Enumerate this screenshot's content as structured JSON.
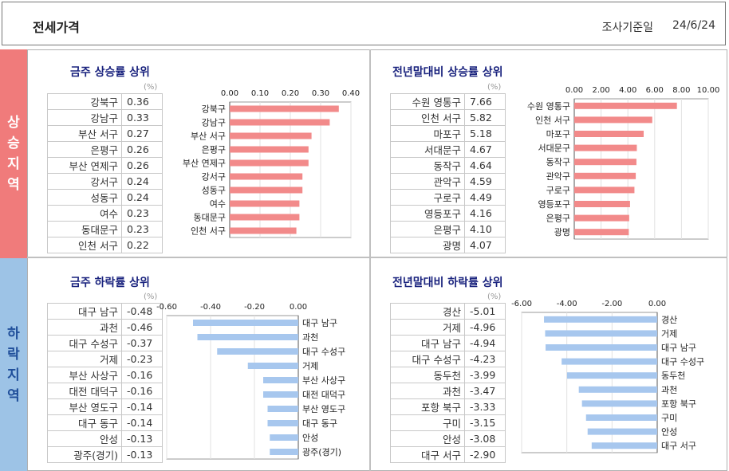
{
  "header": {
    "title": "전세가격",
    "date_label": "조사기준일",
    "date_value": "24/6/24"
  },
  "side": {
    "up": "상승지역",
    "down": "하락지역"
  },
  "unit": "(%)",
  "chart_data": [
    {
      "type": "bar",
      "title": "금주 상승률 상위",
      "categories": [
        "강북구",
        "강남구",
        "부산 서구",
        "은평구",
        "부산 연제구",
        "강서구",
        "성동구",
        "여수",
        "동대문구",
        "인천 서구"
      ],
      "values": [
        0.36,
        0.33,
        0.27,
        0.26,
        0.26,
        0.24,
        0.24,
        0.23,
        0.23,
        0.22
      ],
      "value_labels": [
        "0.36",
        "0.33",
        "0.27",
        "0.26",
        "0.26",
        "0.24",
        "0.24",
        "0.23",
        "0.23",
        "0.22"
      ],
      "xlim": [
        0,
        0.4
      ],
      "ticks": [
        "0.00",
        "0.10",
        "0.20",
        "0.30",
        "0.40"
      ],
      "axis_side": "left",
      "color": "#f28a8a"
    },
    {
      "type": "bar",
      "title": "전년말대비 상승률 상위",
      "categories": [
        "수원 영통구",
        "인천 서구",
        "마포구",
        "서대문구",
        "동작구",
        "관악구",
        "구로구",
        "영등포구",
        "은평구",
        "광명"
      ],
      "values": [
        7.66,
        5.82,
        5.18,
        4.67,
        4.64,
        4.59,
        4.49,
        4.16,
        4.1,
        4.07
      ],
      "value_labels": [
        "7.66",
        "5.82",
        "5.18",
        "4.67",
        "4.64",
        "4.59",
        "4.49",
        "4.16",
        "4.10",
        "4.07"
      ],
      "xlim": [
        0,
        10.0
      ],
      "ticks": [
        "0.00",
        "2.00",
        "4.00",
        "6.00",
        "8.00",
        "10.00"
      ],
      "axis_side": "left",
      "color": "#f28a8a"
    },
    {
      "type": "bar",
      "title": "금주 하락률 상위",
      "categories": [
        "대구 남구",
        "과천",
        "대구 수성구",
        "거제",
        "부산 사상구",
        "대전 대덕구",
        "부산 영도구",
        "대구 동구",
        "안성",
        "광주(경기)"
      ],
      "values": [
        -0.48,
        -0.46,
        -0.37,
        -0.23,
        -0.16,
        -0.16,
        -0.14,
        -0.14,
        -0.13,
        -0.13
      ],
      "value_labels": [
        "-0.48",
        "-0.46",
        "-0.37",
        "-0.23",
        "-0.16",
        "-0.16",
        "-0.14",
        "-0.14",
        "-0.13",
        "-0.13"
      ],
      "xlim": [
        -0.6,
        0.0
      ],
      "ticks": [
        "-0.60",
        "-0.40",
        "-0.20",
        "0.00"
      ],
      "axis_side": "right",
      "color": "#a7c7ee"
    },
    {
      "type": "bar",
      "title": "전년말대비 하락률 상위",
      "categories": [
        "경산",
        "거제",
        "대구 남구",
        "대구 수성구",
        "동두천",
        "과천",
        "포항 북구",
        "구미",
        "안성",
        "대구 서구"
      ],
      "values": [
        -5.01,
        -4.96,
        -4.94,
        -4.23,
        -3.99,
        -3.47,
        -3.33,
        -3.15,
        -3.08,
        -2.9
      ],
      "value_labels": [
        "-5.01",
        "-4.96",
        "-4.94",
        "-4.23",
        "-3.99",
        "-3.47",
        "-3.33",
        "-3.15",
        "-3.08",
        "-2.90"
      ],
      "xlim": [
        -6.0,
        0.0
      ],
      "ticks": [
        "-6.00",
        "-4.00",
        "-2.00",
        "0.00"
      ],
      "axis_side": "right",
      "color": "#a7c7ee"
    }
  ]
}
